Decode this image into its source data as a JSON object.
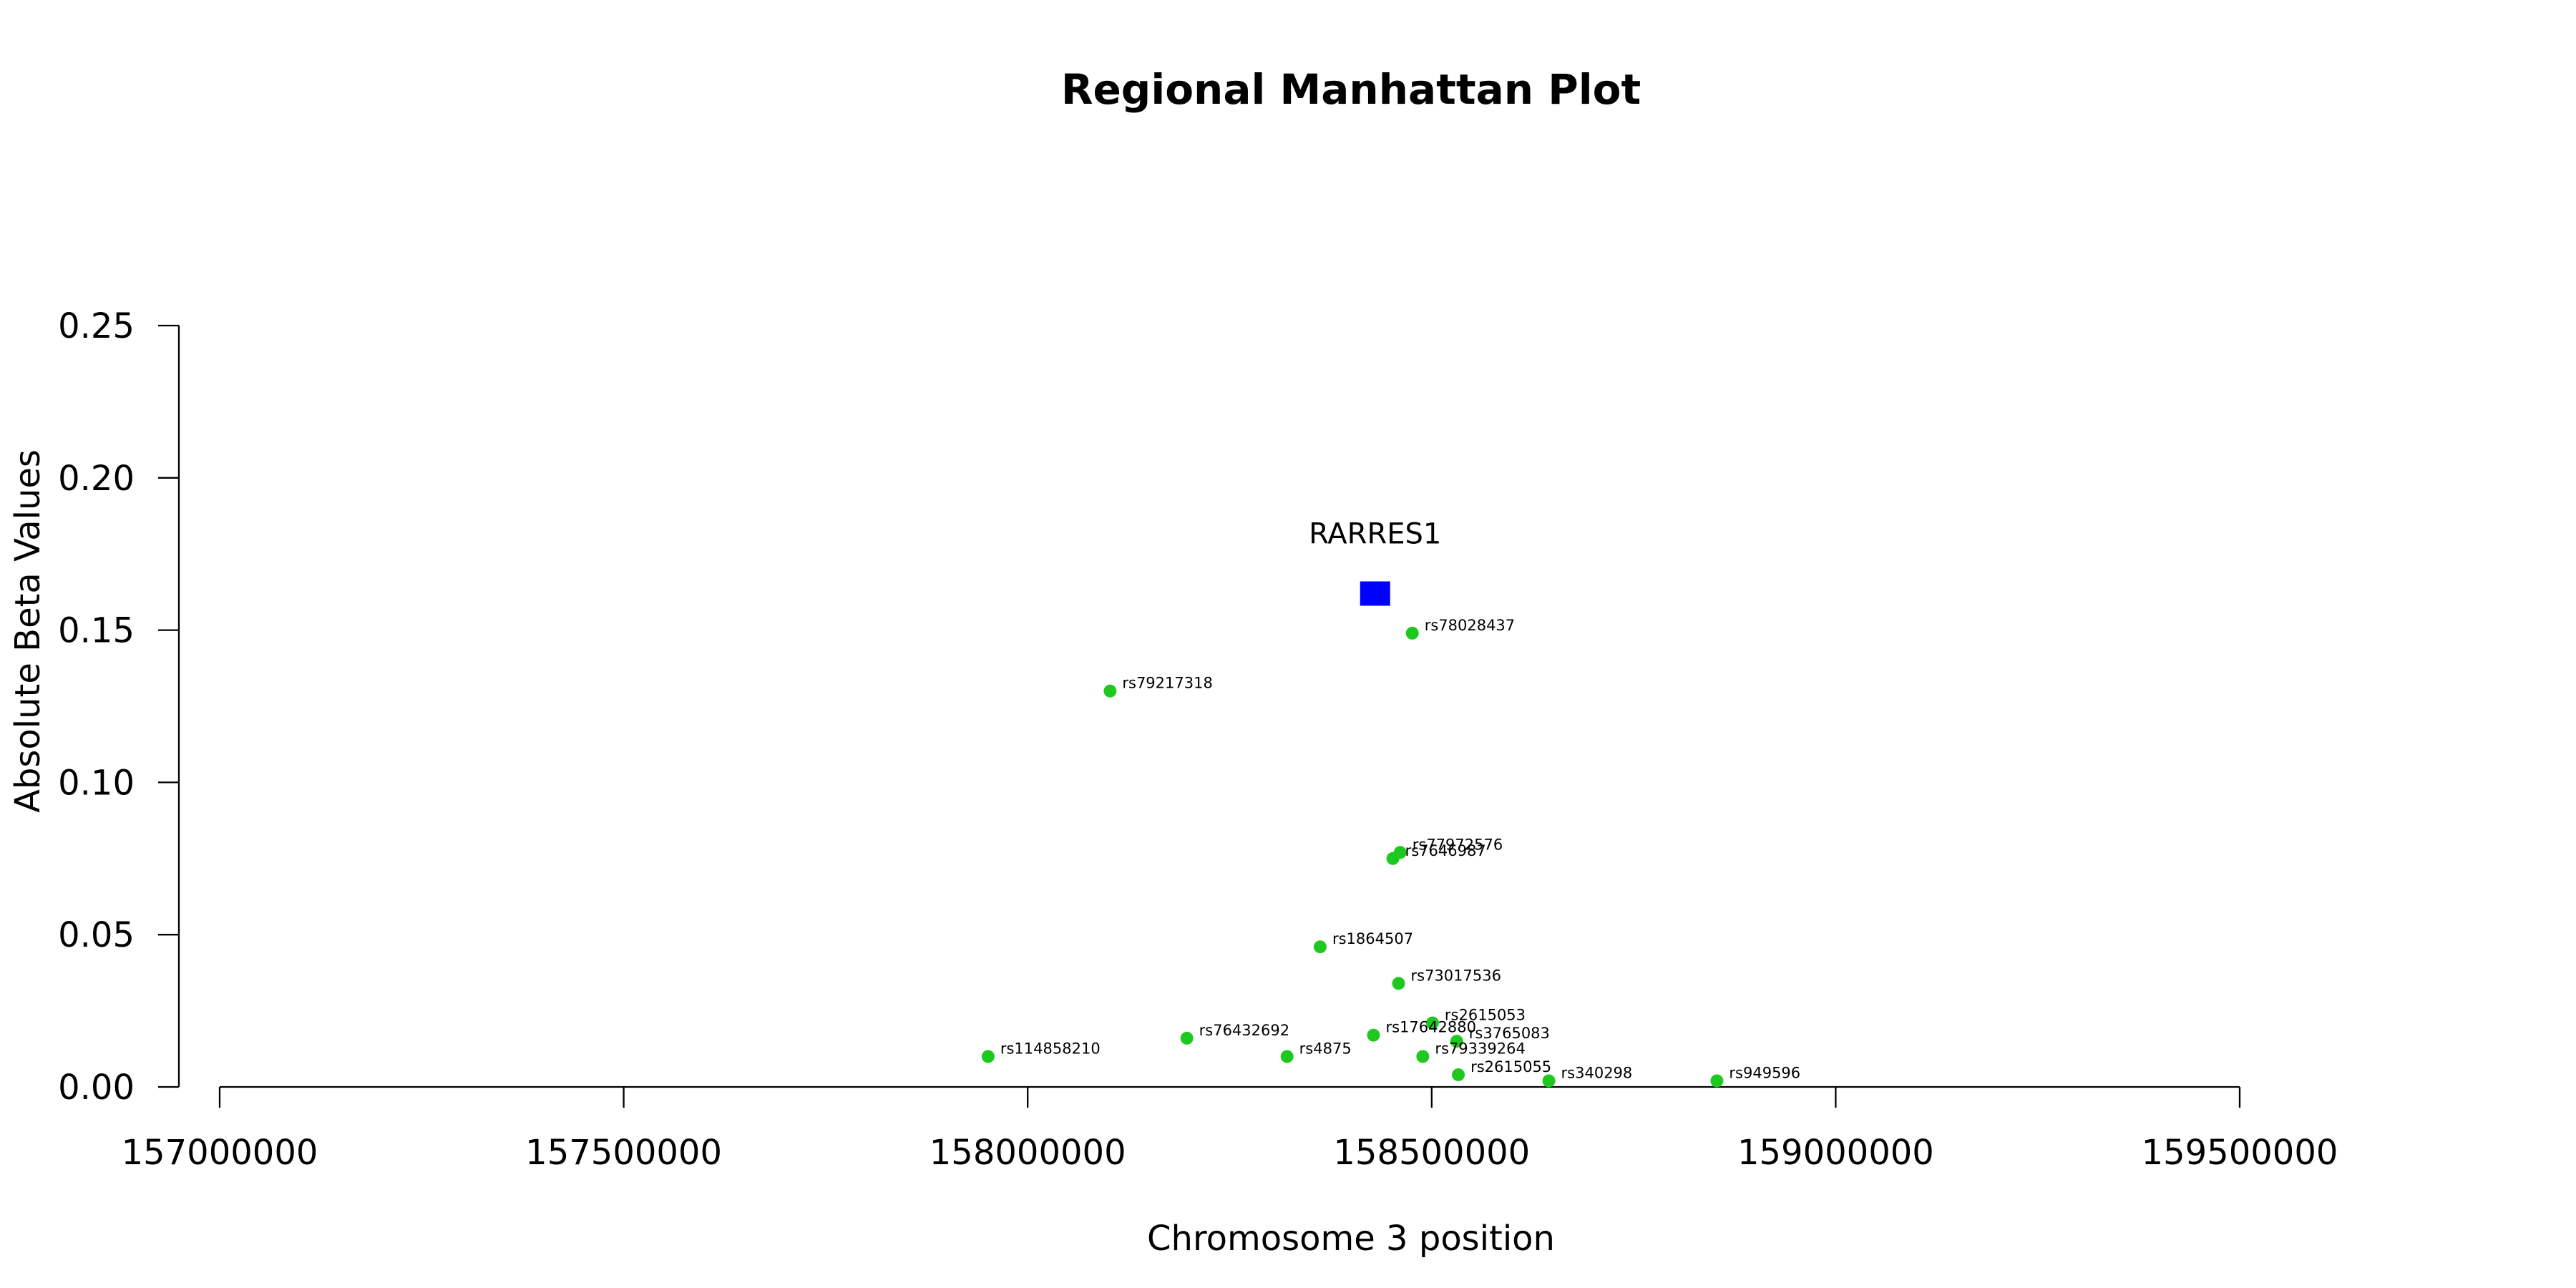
{
  "chart_data": {
    "type": "scatter",
    "title": "Regional Manhattan Plot",
    "xlabel": "Chromosome 3 position",
    "ylabel": "Absolute Beta Values",
    "xlim": [
      157000000,
      159500000
    ],
    "ylim": [
      0,
      0.25
    ],
    "xticks": [
      157000000,
      157500000,
      158000000,
      158500000,
      159000000,
      159500000
    ],
    "xtick_labels": [
      "157000000",
      "157500000",
      "158000000",
      "158500000",
      "159000000",
      "159500000"
    ],
    "yticks": [
      0,
      0.05,
      0.1,
      0.15,
      0.2,
      0.25
    ],
    "ytick_labels": [
      "0.00",
      "0.05",
      "0.10",
      "0.15",
      "0.20",
      "0.25"
    ],
    "gene": {
      "name": "RARRES1",
      "x": 158430000,
      "y": 0.162,
      "color": "#0000ff",
      "marker": "square"
    },
    "series": [
      {
        "color": "#1ec81e",
        "points": [
          {
            "label": "rs78028437",
            "x": 158476000,
            "y": 0.149
          },
          {
            "label": "rs79217318",
            "x": 158102000,
            "y": 0.13
          },
          {
            "label": "rs77972576",
            "x": 158461000,
            "y": 0.077
          },
          {
            "label": "rs7646987",
            "x": 158452000,
            "y": 0.075
          },
          {
            "label": "rs1864507",
            "x": 158362000,
            "y": 0.046
          },
          {
            "label": "rs73017536",
            "x": 158459000,
            "y": 0.034
          },
          {
            "label": "rs2615053",
            "x": 158501000,
            "y": 0.021
          },
          {
            "label": "rs17642880",
            "x": 158428000,
            "y": 0.017
          },
          {
            "label": "rs3765083",
            "x": 158531000,
            "y": 0.015
          },
          {
            "label": "rs76432692",
            "x": 158197000,
            "y": 0.016
          },
          {
            "label": "rs114858210",
            "x": 157951000,
            "y": 0.01
          },
          {
            "label": "rs4875",
            "x": 158321000,
            "y": 0.01
          },
          {
            "label": "rs79339264",
            "x": 158489000,
            "y": 0.01
          },
          {
            "label": "rs2615055",
            "x": 158533000,
            "y": 0.004
          },
          {
            "label": "rs340298",
            "x": 158645000,
            "y": 0.002
          },
          {
            "label": "rs949596",
            "x": 158853000,
            "y": 0.002
          }
        ]
      }
    ],
    "grid": false,
    "legend": "none"
  }
}
